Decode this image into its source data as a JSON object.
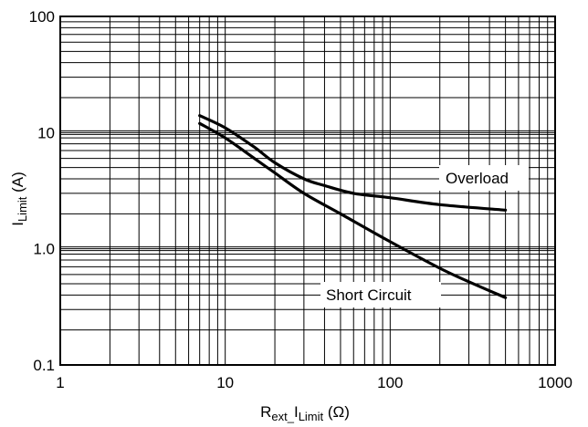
{
  "chart_data": {
    "type": "line",
    "x_scale": "log",
    "y_scale": "log",
    "xlim": [
      1,
      1000
    ],
    "ylim": [
      0.1,
      100
    ],
    "grid": true,
    "x_ticks": [
      {
        "value": 1,
        "label": "1"
      },
      {
        "value": 10,
        "label": "10"
      },
      {
        "value": 100,
        "label": "100"
      },
      {
        "value": 1000,
        "label": "1000"
      }
    ],
    "y_ticks": [
      {
        "value": 0.1,
        "label": "0.1"
      },
      {
        "value": 1,
        "label": "1.0"
      },
      {
        "value": 10,
        "label": "10"
      },
      {
        "value": 100,
        "label": "100"
      }
    ],
    "xlabel": {
      "main": "R",
      "sub1": "ext_",
      "mid": "I",
      "sub2": "Limit",
      "tail": " (Ω)"
    },
    "ylabel": {
      "main": "I",
      "sub": "Limit",
      "tail": " (A)"
    },
    "series": [
      {
        "name": "Overload",
        "color": "#000000",
        "x": [
          7,
          10,
          15,
          20,
          30,
          40,
          60,
          100,
          200,
          500
        ],
        "y": [
          14,
          11,
          7.5,
          5.5,
          4.0,
          3.5,
          3.0,
          2.75,
          2.4,
          2.15
        ]
      },
      {
        "name": "Short Circuit",
        "color": "#000000",
        "x": [
          7,
          10,
          15,
          20,
          30,
          50,
          100,
          200,
          300,
          500
        ],
        "y": [
          12,
          9.0,
          6.0,
          4.5,
          3.0,
          2.0,
          1.15,
          0.68,
          0.52,
          0.38
        ]
      }
    ]
  }
}
